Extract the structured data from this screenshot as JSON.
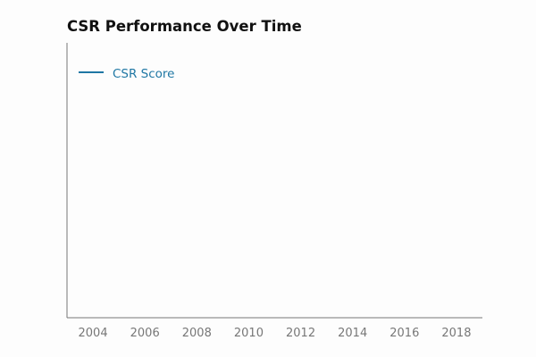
{
  "colors": {
    "series": "#1f77a4",
    "axis": "#777777",
    "title": "#111111"
  },
  "chart_data": {
    "type": "line",
    "title": "CSR Performance Over Time",
    "xlabel": "",
    "ylabel": "",
    "x_tick_labels": [
      "2004",
      "2006",
      "2008",
      "2010",
      "2012",
      "2014",
      "2016",
      "2018"
    ],
    "xlim": [
      2003,
      2019
    ],
    "grid": false,
    "legend_position": "top-left",
    "series": [
      {
        "name": "CSR Score",
        "x": [],
        "y": []
      }
    ]
  }
}
